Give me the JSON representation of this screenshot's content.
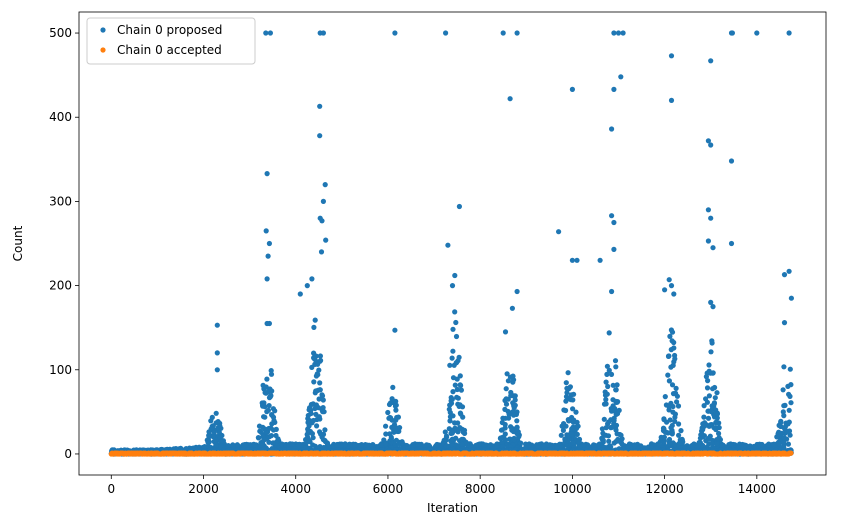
{
  "chart_data": {
    "type": "scatter",
    "title": "",
    "xlabel": "Iteration",
    "ylabel": "Count",
    "xlim": [
      -700,
      15500
    ],
    "ylim": [
      -25,
      525
    ],
    "xticks": [
      0,
      2000,
      4000,
      6000,
      8000,
      10000,
      12000,
      14000
    ],
    "yticks": [
      0,
      100,
      200,
      300,
      400,
      500
    ],
    "legend_position": "top-left",
    "grid": false,
    "series": [
      {
        "name": "Chain 0 proposed",
        "color": "#1f77b4",
        "marker": "circle",
        "x_range": [
          0,
          14750
        ],
        "note_points": [
          [
            2300,
            153
          ],
          [
            2300,
            120
          ],
          [
            2300,
            100
          ],
          [
            3350,
            500
          ],
          [
            3450,
            500
          ],
          [
            3380,
            333
          ],
          [
            3360,
            265
          ],
          [
            3430,
            250
          ],
          [
            3400,
            235
          ],
          [
            3380,
            208
          ],
          [
            3430,
            155
          ],
          [
            3380,
            155
          ],
          [
            4530,
            500
          ],
          [
            4600,
            500
          ],
          [
            4520,
            413
          ],
          [
            4520,
            378
          ],
          [
            4640,
            320
          ],
          [
            4600,
            300
          ],
          [
            4530,
            280
          ],
          [
            4570,
            277
          ],
          [
            4650,
            254
          ],
          [
            4560,
            240
          ],
          [
            4350,
            208
          ],
          [
            4250,
            200
          ],
          [
            4100,
            190
          ],
          [
            6150,
            500
          ],
          [
            6150,
            147
          ],
          [
            7250,
            500
          ],
          [
            7300,
            248
          ],
          [
            7550,
            294
          ],
          [
            7450,
            212
          ],
          [
            7400,
            200
          ],
          [
            8500,
            500
          ],
          [
            8800,
            500
          ],
          [
            8650,
            422
          ],
          [
            8700,
            173
          ],
          [
            8800,
            193
          ],
          [
            8550,
            145
          ],
          [
            9700,
            264
          ],
          [
            10000,
            433
          ],
          [
            10000,
            230
          ],
          [
            10100,
            230
          ],
          [
            10600,
            230
          ],
          [
            10900,
            500
          ],
          [
            11000,
            500
          ],
          [
            11100,
            500
          ],
          [
            10900,
            433
          ],
          [
            10850,
            386
          ],
          [
            11050,
            448
          ],
          [
            10850,
            283
          ],
          [
            10900,
            275
          ],
          [
            10900,
            243
          ],
          [
            10850,
            193
          ],
          [
            12150,
            473
          ],
          [
            12150,
            420
          ],
          [
            12100,
            207
          ],
          [
            12150,
            200
          ],
          [
            12000,
            195
          ],
          [
            12200,
            190
          ],
          [
            13000,
            467
          ],
          [
            12950,
            372
          ],
          [
            13000,
            367
          ],
          [
            12950,
            290
          ],
          [
            13000,
            280
          ],
          [
            12950,
            253
          ],
          [
            13050,
            245
          ],
          [
            13450,
            500
          ],
          [
            13470,
            500
          ],
          [
            14000,
            500
          ],
          [
            14700,
            500
          ],
          [
            13450,
            348
          ],
          [
            13450,
            250
          ],
          [
            14600,
            213
          ],
          [
            14700,
            217
          ],
          [
            14750,
            185
          ],
          [
            14600,
            156
          ],
          [
            13000,
            180
          ],
          [
            13050,
            175
          ]
        ],
        "peaks": [
          {
            "x": 2250,
            "max": 60
          },
          {
            "x": 3400,
            "max": 130
          },
          {
            "x": 4450,
            "max": 170
          },
          {
            "x": 6100,
            "max": 85
          },
          {
            "x": 7450,
            "max": 170
          },
          {
            "x": 8650,
            "max": 120
          },
          {
            "x": 9950,
            "max": 110
          },
          {
            "x": 10850,
            "max": 160
          },
          {
            "x": 12150,
            "max": 150
          },
          {
            "x": 13000,
            "max": 150
          },
          {
            "x": 14650,
            "max": 130
          }
        ]
      },
      {
        "name": "Chain 0 accepted",
        "color": "#ff7f0e",
        "marker": "circle",
        "x_range": [
          0,
          14750
        ],
        "y_values": [
          0,
          1
        ]
      }
    ]
  }
}
